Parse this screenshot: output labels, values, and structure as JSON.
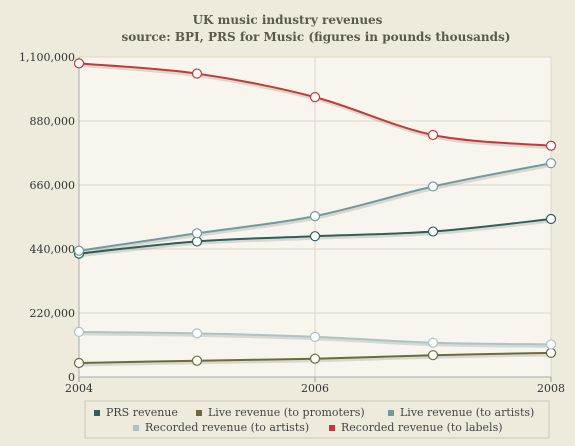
{
  "chart_data": {
    "type": "line",
    "title": "UK music industry revenues",
    "subtitle": "source: BPI, PRS for Music (figures in pounds thousands)",
    "xlabel": "",
    "ylabel": "",
    "x": [
      2004,
      2005,
      2006,
      2007,
      2008
    ],
    "x_ticks": [
      "2004",
      "2006",
      "2008"
    ],
    "xlim": [
      2004,
      2008
    ],
    "ylim": [
      0,
      1100000
    ],
    "y_ticks": [
      "0",
      "220,000",
      "440,000",
      "660,000",
      "880,000",
      "1,100,000"
    ],
    "grid": true,
    "legend_position": "bottom",
    "series": [
      {
        "name": "PRS revenue",
        "color": "#2d5f5b",
        "values": [
          424000,
          466000,
          484000,
          500000,
          543000
        ]
      },
      {
        "name": "Live revenue (to promoters)",
        "color": "#6e6a3a",
        "values": [
          48000,
          56000,
          63000,
          75000,
          83000
        ]
      },
      {
        "name": "Live revenue (to artists)",
        "color": "#6f9aa0",
        "values": [
          434000,
          494000,
          553000,
          655000,
          735000
        ]
      },
      {
        "name": "Recorded revenue (to artists)",
        "color": "#a9c4c8",
        "values": [
          155000,
          150000,
          138000,
          118000,
          112000
        ]
      },
      {
        "name": "Recorded revenue (to labels)",
        "color": "#c23b37",
        "values": [
          1078000,
          1043000,
          962000,
          832000,
          795000
        ]
      }
    ]
  }
}
